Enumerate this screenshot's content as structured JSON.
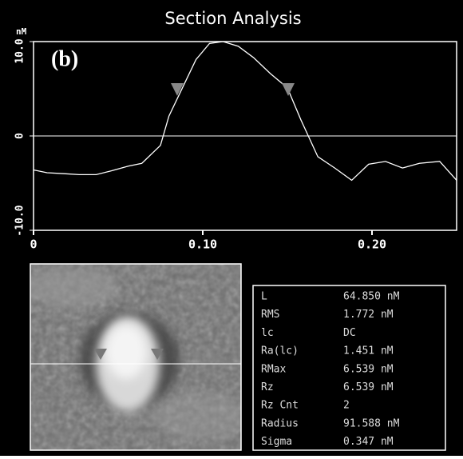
{
  "chart_data": {
    "type": "line",
    "title": "Section Analysis",
    "y_unit": "nM",
    "panel_label": "(b)",
    "x": [
      0,
      0.008,
      0.018,
      0.027,
      0.037,
      0.046,
      0.056,
      0.064,
      0.075,
      0.08,
      0.088,
      0.096,
      0.104,
      0.112,
      0.121,
      0.13,
      0.14,
      0.15,
      0.158,
      0.168,
      0.178,
      0.188,
      0.198,
      0.208,
      0.218,
      0.228,
      0.24,
      0.25
    ],
    "series": [
      {
        "color": "#ffffff",
        "values": [
          -3.6,
          -3.9,
          -4.0,
          -4.1,
          -4.1,
          -3.7,
          -3.2,
          -2.9,
          -1.0,
          2.1,
          5.1,
          8.1,
          9.8,
          10.0,
          9.5,
          8.3,
          6.6,
          5.1,
          1.7,
          -2.2,
          -3.4,
          -4.7,
          -3.0,
          -2.7,
          -3.4,
          -2.9,
          -2.7,
          -4.7
        ]
      }
    ],
    "xlim": [
      0,
      0.25
    ],
    "ylim": [
      -10,
      10
    ],
    "xticks": [
      0,
      {
        "value": 0.1,
        "label": "0.10"
      },
      {
        "value": 0.2,
        "label": "0.20"
      }
    ],
    "yticks": [
      {
        "value": -10,
        "label": "-10.0"
      },
      0,
      {
        "value": 10,
        "label": "10.0"
      }
    ]
  },
  "stats_table": {
    "rows": [
      [
        "L",
        "64.850 nM"
      ],
      [
        "RMS",
        "1.772 nM"
      ],
      [
        "lc",
        "DC"
      ],
      [
        "Ra(lc)",
        "1.451 nM"
      ],
      [
        "RMax",
        "6.539 nM"
      ],
      [
        "Rz",
        "6.539 nM"
      ],
      [
        "Rz Cnt",
        "2"
      ],
      [
        "Radius",
        "91.588 nM"
      ],
      [
        "Sigma",
        "0.347 nM"
      ]
    ]
  }
}
